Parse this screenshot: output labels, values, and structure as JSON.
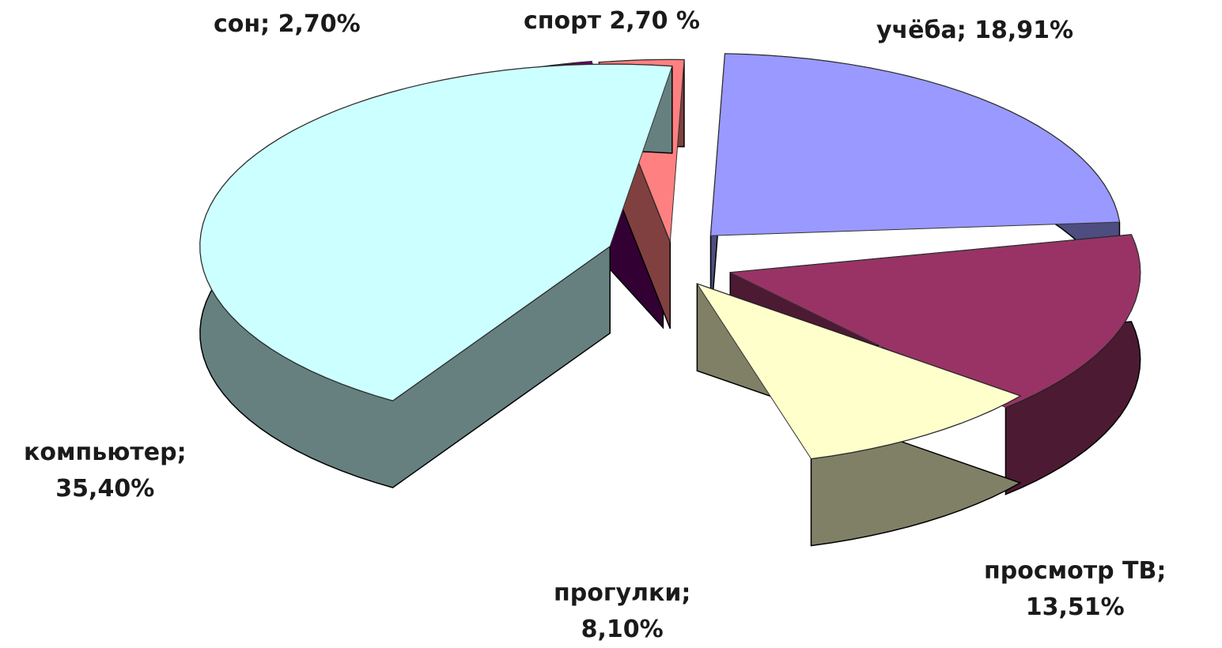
{
  "chart_data": {
    "type": "pie",
    "variant": "3d-exploded",
    "slices": [
      {
        "key": "ucheba",
        "label_line1": "учёба; 18,91%",
        "label_line2": "",
        "value": 18.91,
        "top_color": "#9999ff",
        "side_color": "#4d4d80"
      },
      {
        "key": "tv",
        "label_line1": "просмотр ТВ;",
        "label_line2": "13,51%",
        "value": 13.51,
        "top_color": "#993366",
        "side_color": "#4d1a33"
      },
      {
        "key": "progulki",
        "label_line1": "прогулки;",
        "label_line2": "8,10%",
        "value": 8.1,
        "top_color": "#ffffcc",
        "side_color": "#808066"
      },
      {
        "key": "komp",
        "label_line1": "компьютер;",
        "label_line2": "35,40%",
        "value": 35.4,
        "top_color": "#ccffff",
        "side_color": "#668080"
      },
      {
        "key": "son",
        "label_line1": "сон; 2,70%",
        "label_line2": "",
        "value": 2.7,
        "top_color": "#660066",
        "side_color": "#330033"
      },
      {
        "key": "sport",
        "label_line1": "спорт 2,70 %",
        "label_line2": "",
        "value": 2.7,
        "top_color": "#ff8080",
        "side_color": "#804040"
      }
    ]
  }
}
